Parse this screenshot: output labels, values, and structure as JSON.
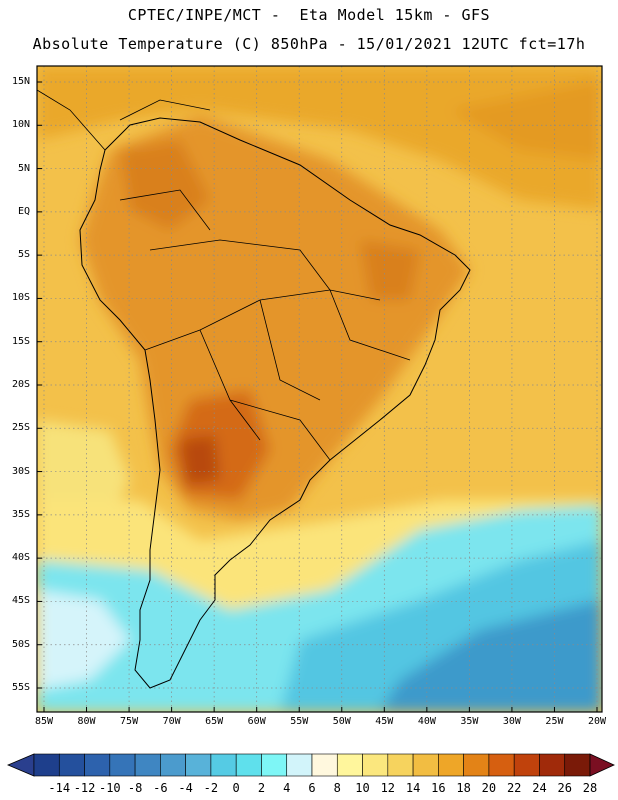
{
  "header": {
    "line1": "CPTEC/INPE/MCT -  Eta Model 15km - GFS",
    "line2": "Absolute Temperature (C) 850hPa - 15/01/2021 12UTC fct=17h"
  },
  "map": {
    "lat_labels": [
      "15N",
      "10N",
      "5N",
      "EQ",
      "5S",
      "10S",
      "15S",
      "20S",
      "25S",
      "30S",
      "35S",
      "40S",
      "45S",
      "50S",
      "55S"
    ],
    "lon_labels": [
      "85W",
      "80W",
      "75W",
      "70W",
      "65W",
      "60W",
      "55W",
      "50W",
      "45W",
      "40W",
      "35W",
      "30W",
      "25W",
      "20W"
    ]
  },
  "colorbar": {
    "labels": [
      "-14",
      "-12",
      "-10",
      "-8",
      "-6",
      "-4",
      "-2",
      "0",
      "2",
      "4",
      "6",
      "8",
      "10",
      "12",
      "14",
      "16",
      "18",
      "20",
      "22",
      "24",
      "26",
      "28"
    ],
    "colors": [
      "#1e3f8c",
      "#24509d",
      "#2d62ad",
      "#3574b8",
      "#3f86c2",
      "#4b9bcd",
      "#58b2d9",
      "#55cbe4",
      "#5fe0ec",
      "#7ef6f6",
      "#d2f4fa",
      "#fff8de",
      "#fff69c",
      "#fbe77e",
      "#f6d35e",
      "#f2bd42",
      "#eea628",
      "#e38317",
      "#d65f10",
      "#c0420c",
      "#a02a0a",
      "#7a1a08"
    ],
    "under_color": "#2a3f8e",
    "over_color": "#7a0f22"
  }
}
